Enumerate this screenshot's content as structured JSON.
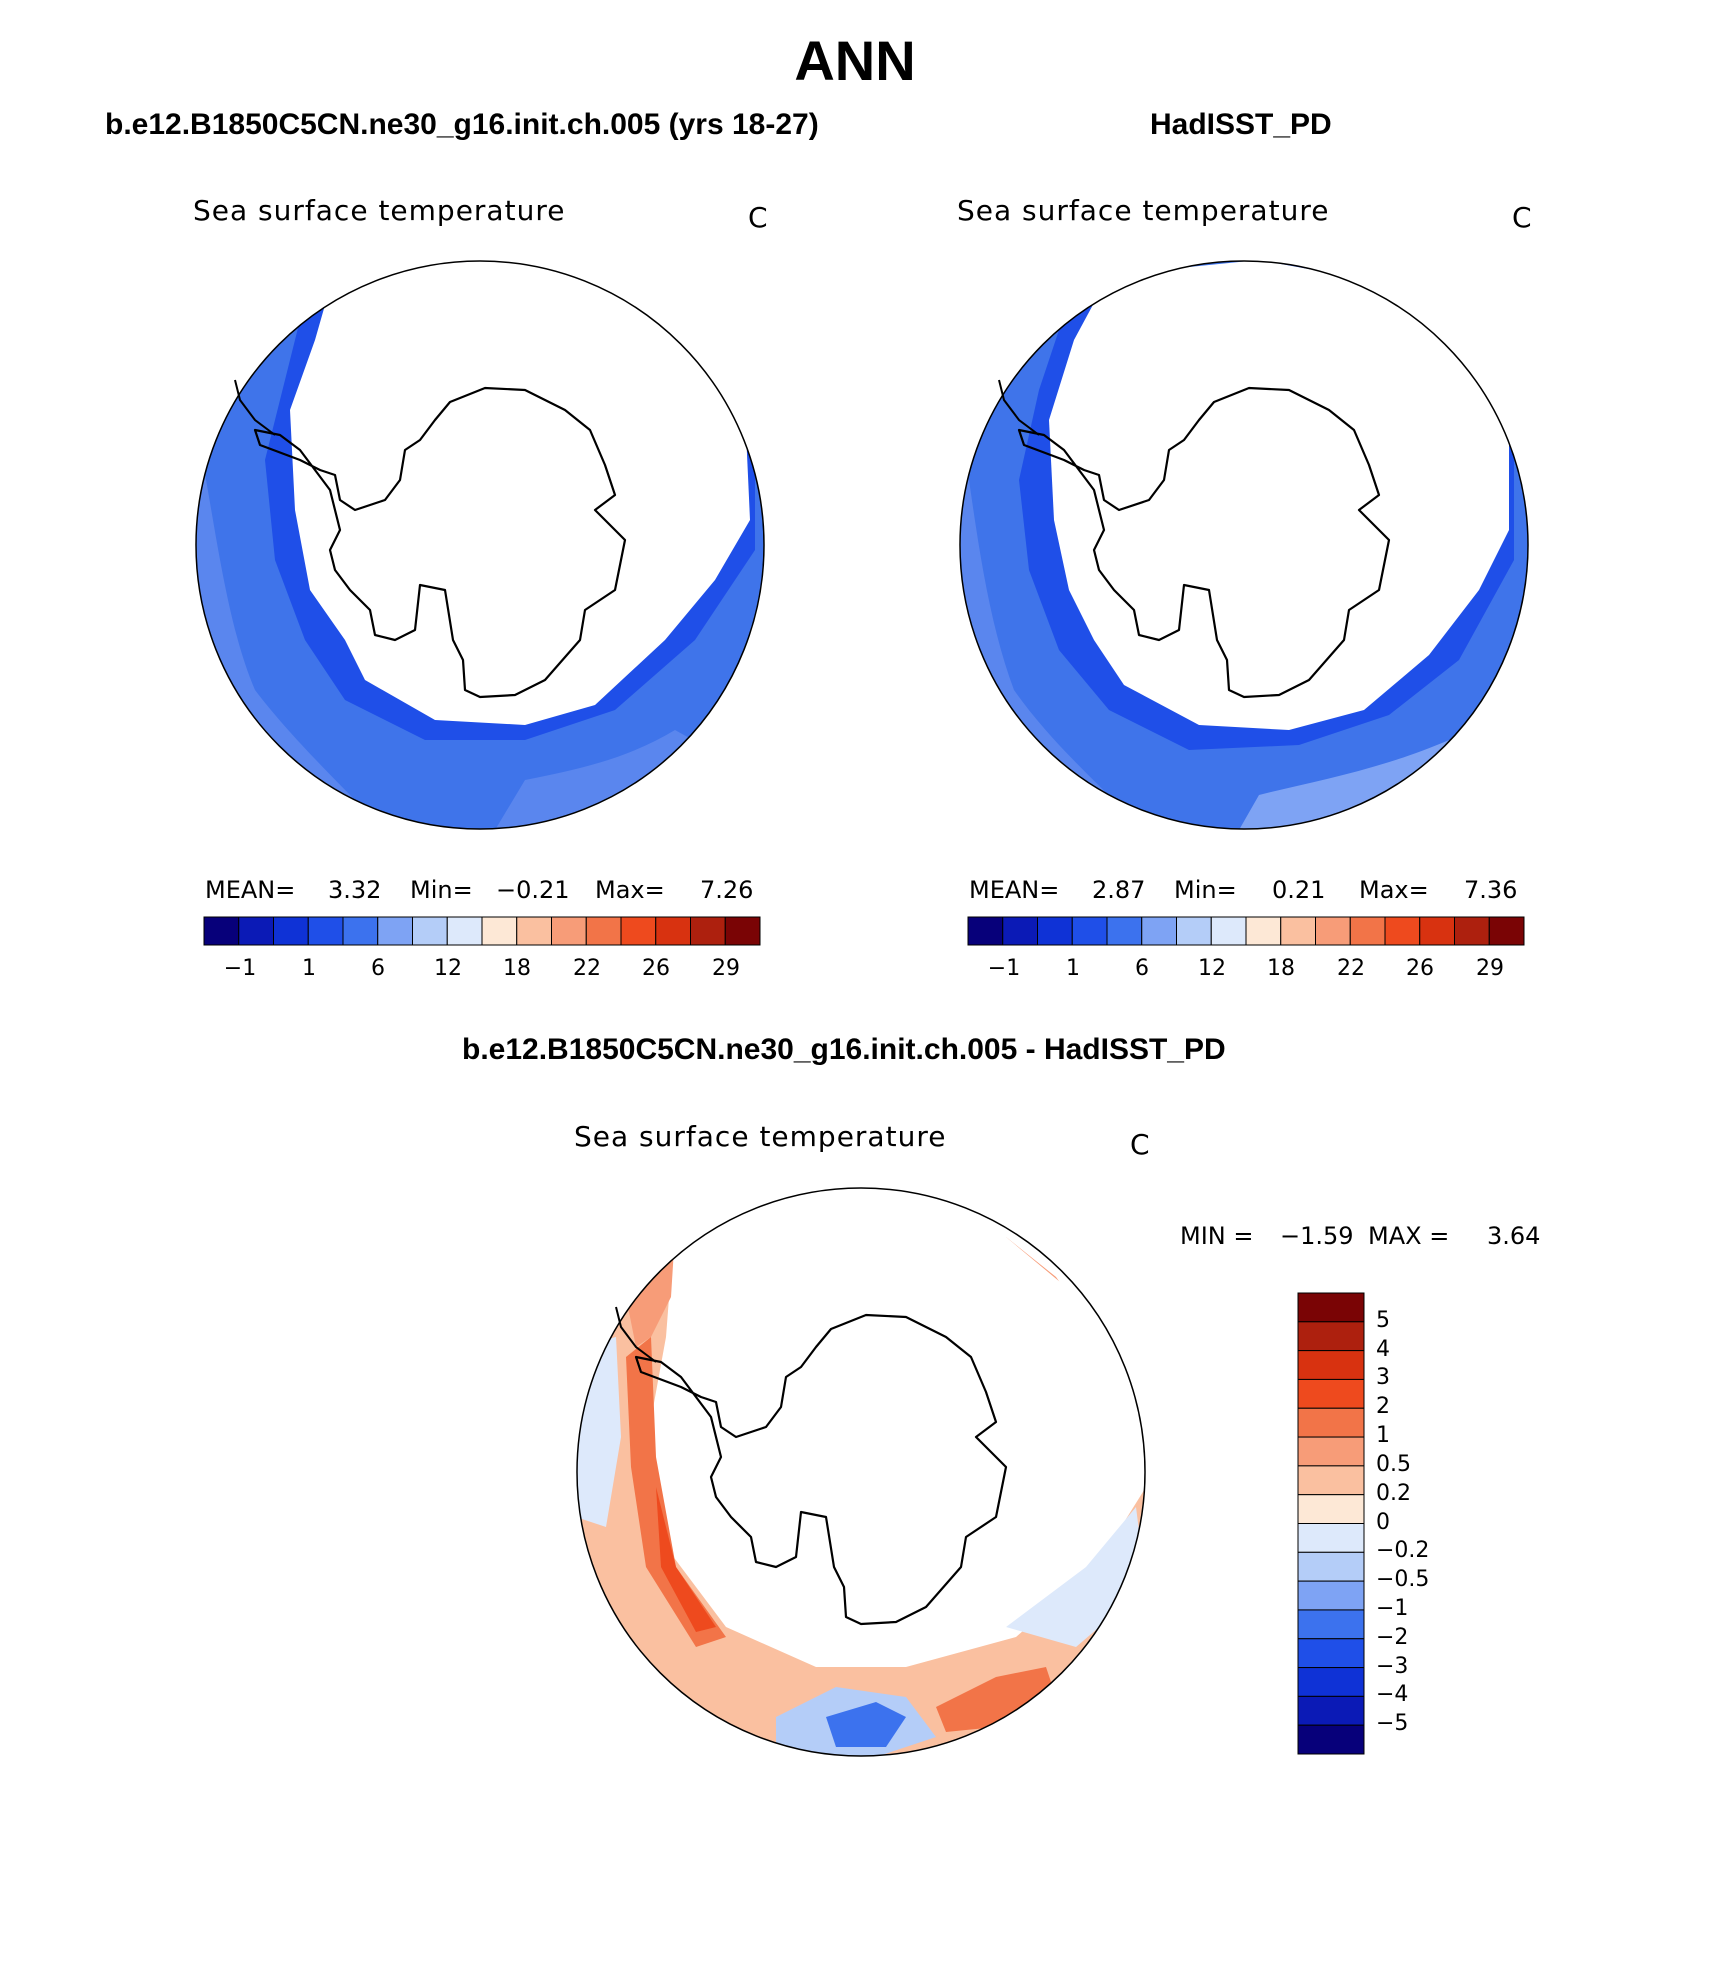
{
  "title": "ANN",
  "panels": [
    {
      "heading": "b.e12.B1850C5CN.ne30_g16.init.ch.005 (yrs 18-27)",
      "field": "Sea surface temperature",
      "units": "C",
      "mean_label": "MEAN=",
      "mean": "3.32",
      "min_label": "Min=",
      "min": "−0.21",
      "max_label": "Max=",
      "max": "7.26"
    },
    {
      "heading": "HadISST_PD",
      "field": "Sea surface temperature",
      "units": "C",
      "mean_label": "MEAN=",
      "mean": "2.87",
      "min_label": "Min=",
      "min": "0.21",
      "max_label": "Max=",
      "max": "7.36"
    }
  ],
  "colorbar": {
    "ticks": [
      "−1",
      "1",
      "6",
      "12",
      "18",
      "22",
      "26",
      "29"
    ],
    "colors": [
      "#07007a",
      "#0b1ab6",
      "#0f32d6",
      "#1f4fe8",
      "#3c72ee",
      "#7ea3f4",
      "#b4cdf8",
      "#dde9fb",
      "#fde8d6",
      "#fac0a0",
      "#f79c78",
      "#f27448",
      "#ee4a1e",
      "#d83210",
      "#ad200e",
      "#7a0405"
    ]
  },
  "diff": {
    "heading": "b.e12.B1850C5CN.ne30_g16.init.ch.005 - HadISST_PD",
    "field": "Sea surface temperature",
    "units": "C",
    "min_label": "MIN =",
    "min": "−1.59",
    "max_label": "MAX =",
    "max": "3.64",
    "levels": [
      "5",
      "4",
      "3",
      "2",
      "1",
      "0.5",
      "0.2",
      "0",
      "−0.2",
      "−0.5",
      "−1",
      "−2",
      "−3",
      "−4",
      "−5"
    ],
    "colors": [
      "#7a0405",
      "#ad200e",
      "#d83210",
      "#ee4a1e",
      "#f27448",
      "#f79c78",
      "#fac0a0",
      "#fde8d6",
      "#dde9fb",
      "#b4cdf8",
      "#7ea3f4",
      "#3c72ee",
      "#1f4fe8",
      "#0f32d6",
      "#0b1ab6",
      "#07007a"
    ]
  },
  "colors": {
    "ocean_mid": "#3f74ea",
    "ocean_light": "#7ea3f4",
    "ice_edge": "#1f4fe8"
  }
}
